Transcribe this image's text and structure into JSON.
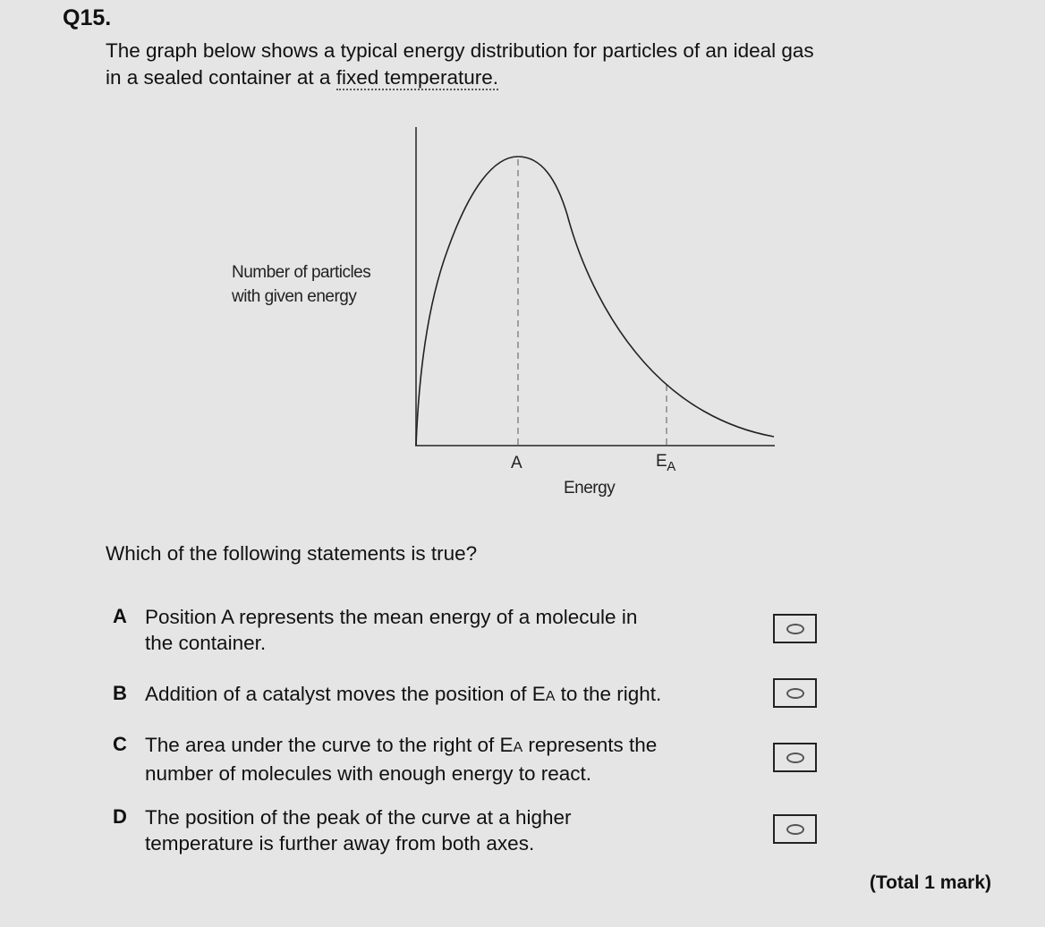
{
  "question_number": "Q15.",
  "intro_line1": "The graph below shows a typical energy distribution for particles of an ideal gas",
  "intro_line2_pre": "in a sealed container at a ",
  "intro_line2_underlined": "fixed temperature.",
  "graph": {
    "y_axis_label_line1": "Number of particles",
    "y_axis_label_line2": "with given energy",
    "x_axis_label": "Energy",
    "marker_a": "A",
    "marker_ea_main": "E",
    "marker_ea_sub": "A",
    "curve_color": "#222222",
    "dashed_line_color": "#888888"
  },
  "prompt": "Which of the following statements is true?",
  "options": [
    {
      "letter": "A",
      "line1": "Position A represents the mean energy of a molecule in",
      "line2": "the container."
    },
    {
      "letter": "B",
      "pre": "Addition of a catalyst moves the position of E",
      "sub": "A",
      "post": " to the right."
    },
    {
      "letter": "C",
      "pre": "The area under the curve to the right of E",
      "sub": "A",
      "post": " represents the",
      "line2": "number of molecules with enough energy to react."
    },
    {
      "letter": "D",
      "line1": "The position of the peak of the curve at a higher",
      "line2": "temperature is further away from both axes."
    }
  ],
  "total": "(Total 1 mark)"
}
